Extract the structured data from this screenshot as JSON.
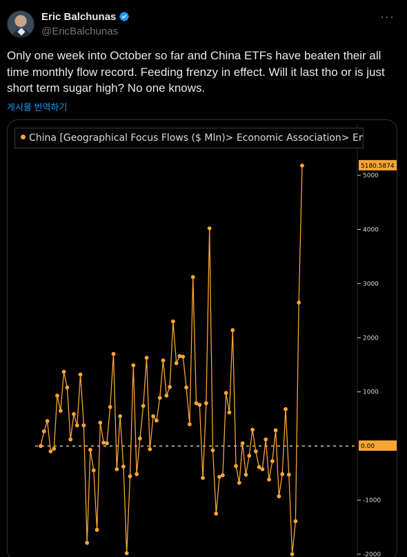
{
  "author": {
    "name": "Eric Balchunas",
    "handle": "@EricBalchunas",
    "avatar_icon": "profile-photo",
    "verified_icon": "verified-badge-icon",
    "verified_color": "#1d9bf0"
  },
  "more_icon": "more-options-icon",
  "tweet": {
    "text": "Only one week into October so far and China ETFs have beaten their all time monthly flow record. Feeding frenzy in effect. Will it last tho or is just short term sugar high? No one knows.",
    "translate_label": "게시물 번역하기"
  },
  "chart_data": {
    "type": "line",
    "legend": "China [Geographical Focus Flows ($ Mln)> Economic Association> Emer",
    "series_color": "#f7a536",
    "y_ticks": [
      5000,
      4000,
      3000,
      2000,
      1000,
      -1000,
      -2000
    ],
    "y_tick_labels": [
      "5000",
      "4000",
      "3000",
      "2000",
      "1000",
      "-1000",
      "-2000"
    ],
    "ylim": [
      -2050,
      5400
    ],
    "last_value_label": "5180.5874",
    "zero_label": "0.00",
    "series": [
      {
        "values": [
          0,
          270,
          460,
          -100,
          -50,
          930,
          650,
          1370,
          1080,
          120,
          590,
          380,
          1320,
          380,
          -1790,
          -70,
          -450,
          -1550,
          430,
          60,
          50,
          720,
          1700,
          -430,
          550,
          -380,
          -1980,
          -560,
          1490,
          -520,
          140,
          740,
          1630,
          -60,
          550,
          470,
          890,
          1580,
          930,
          1090,
          2300,
          1530,
          1660,
          1650,
          1080,
          400,
          3120,
          790,
          760,
          -590,
          790,
          4020,
          -80,
          -1250,
          -570,
          -540,
          980,
          620,
          2140,
          -370,
          -680,
          50,
          -530,
          -180,
          300,
          -100,
          -390,
          -430,
          120,
          -620,
          -280,
          290,
          -930,
          -520,
          680,
          -530,
          -2000,
          -1390,
          2650,
          5180
        ]
      }
    ]
  }
}
